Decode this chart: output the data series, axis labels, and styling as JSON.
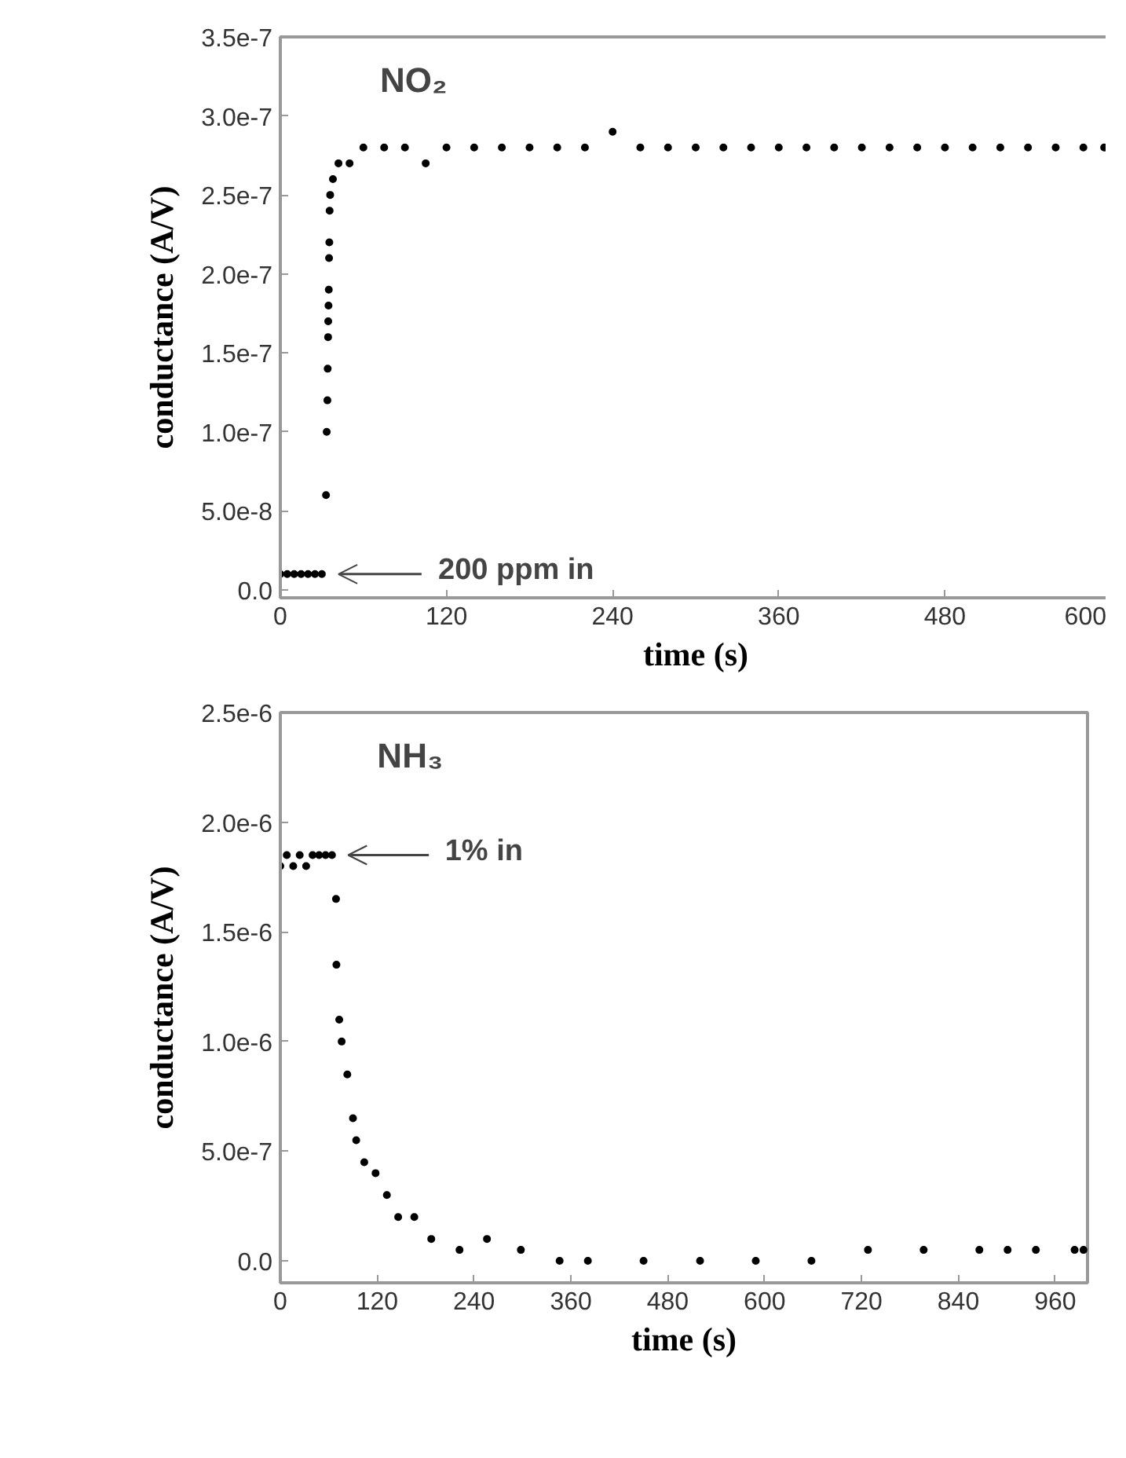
{
  "chart_data": [
    {
      "type": "scatter",
      "title": "NO₂",
      "xlabel": "time (s)",
      "ylabel": "conductance (A/V)",
      "marker": "circle",
      "grid": false,
      "xlim": [
        0,
        600
      ],
      "xticks": [
        0,
        120,
        240,
        360,
        480,
        600
      ],
      "ylim": [
        -5e-09,
        3.5e-07
      ],
      "yticks": [
        {
          "value": 0,
          "label": "0.0"
        },
        {
          "value": 5e-08,
          "label": "5.0e-8"
        },
        {
          "value": 1e-07,
          "label": "1.0e-7"
        },
        {
          "value": 1.5e-07,
          "label": "1.5e-7"
        },
        {
          "value": 2e-07,
          "label": "2.0e-7"
        },
        {
          "value": 2.5e-07,
          "label": "2.5e-7"
        },
        {
          "value": 3e-07,
          "label": "3.0e-7"
        },
        {
          "value": 3.5e-07,
          "label": "3.5e-7"
        }
      ],
      "annotations": [
        "200 ppm in"
      ],
      "series": [
        {
          "color": "#000000",
          "x": [
            0,
            5,
            10,
            15,
            20,
            25,
            30,
            33,
            33.5,
            34,
            34.2,
            34.5,
            34.6,
            34.8,
            35,
            35.2,
            35.4,
            35.6,
            36,
            38,
            42,
            50,
            60,
            75,
            90,
            105,
            120,
            140,
            160,
            180,
            200,
            220,
            240,
            260,
            280,
            300,
            320,
            340,
            360,
            380,
            400,
            420,
            440,
            460,
            480,
            500,
            520,
            540,
            560,
            580,
            595
          ],
          "values": [
            1e-08,
            1e-08,
            1e-08,
            1e-08,
            1e-08,
            1e-08,
            1e-08,
            6e-08,
            1e-07,
            1.2e-07,
            1.4e-07,
            1.6e-07,
            1.7e-07,
            1.8e-07,
            1.9e-07,
            2.1e-07,
            2.2e-07,
            2.4e-07,
            2.5e-07,
            2.6e-07,
            2.7e-07,
            2.7e-07,
            2.8e-07,
            2.8e-07,
            2.8e-07,
            2.7e-07,
            2.8e-07,
            2.8e-07,
            2.8e-07,
            2.8e-07,
            2.8e-07,
            2.8e-07,
            2.9e-07,
            2.8e-07,
            2.8e-07,
            2.8e-07,
            2.8e-07,
            2.8e-07,
            2.8e-07,
            2.8e-07,
            2.8e-07,
            2.8e-07,
            2.8e-07,
            2.8e-07,
            2.8e-07,
            2.8e-07,
            2.8e-07,
            2.8e-07,
            2.8e-07,
            2.8e-07,
            2.8e-07
          ]
        }
      ]
    },
    {
      "type": "scatter",
      "title": "NH₃",
      "xlabel": "time (s)",
      "ylabel": "conductance (A/V)",
      "marker": "circle",
      "grid": false,
      "xlim": [
        0,
        1000
      ],
      "xticks": [
        0,
        120,
        240,
        360,
        480,
        600,
        720,
        840,
        960
      ],
      "ylim": [
        -1e-07,
        2.5e-06
      ],
      "yticks": [
        {
          "value": 0,
          "label": "0.0"
        },
        {
          "value": 5e-07,
          "label": "5.0e-7"
        },
        {
          "value": 1e-06,
          "label": "1.0e-6"
        },
        {
          "value": 1.5e-06,
          "label": "1.5e-6"
        },
        {
          "value": 2e-06,
          "label": "2.0e-6"
        },
        {
          "value": 2.5e-06,
          "label": "2.5e-6"
        }
      ],
      "annotations": [
        "1% in"
      ],
      "series": [
        {
          "color": "#000000",
          "x": [
            0,
            8,
            16,
            24,
            32,
            40,
            48,
            56,
            64,
            69,
            69.5,
            73,
            76,
            83,
            90,
            94,
            104,
            118,
            132,
            146,
            166,
            187,
            222,
            256,
            298,
            346,
            381,
            450,
            520,
            589,
            658,
            728,
            797,
            866,
            901,
            936,
            984,
            995
          ],
          "values": [
            1.8e-06,
            1.85e-06,
            1.8e-06,
            1.85e-06,
            1.8e-06,
            1.85e-06,
            1.85e-06,
            1.85e-06,
            1.85e-06,
            1.65e-06,
            1.35e-06,
            1.1e-06,
            1e-06,
            8.5e-07,
            6.5e-07,
            5.5e-07,
            4.5e-07,
            4e-07,
            3e-07,
            2e-07,
            2e-07,
            1e-07,
            5e-08,
            1e-07,
            5e-08,
            0,
            0,
            0,
            0,
            0,
            0,
            5e-08,
            5e-08,
            5e-08,
            5e-08,
            5e-08,
            5e-08,
            5e-08
          ]
        }
      ]
    }
  ]
}
